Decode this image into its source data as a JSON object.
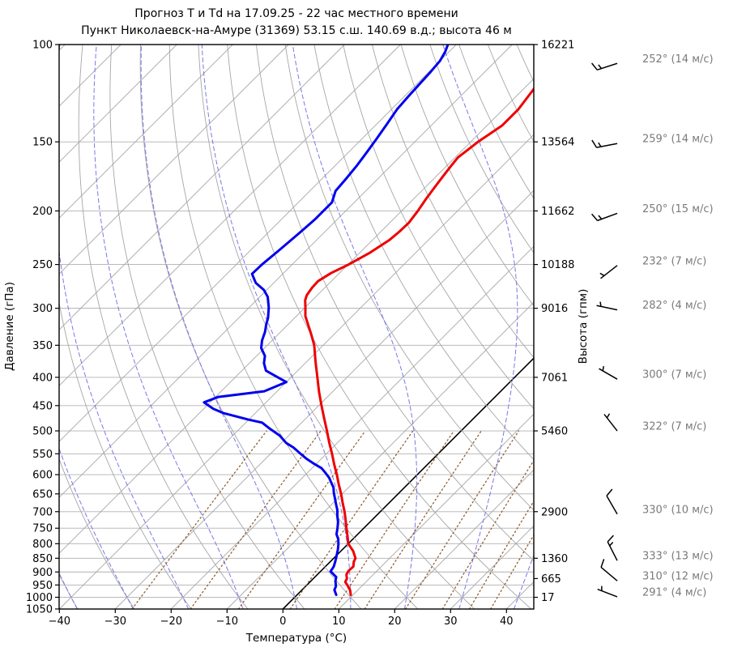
{
  "title": {
    "line1": "Прогноз Т и Td на 17.09.25 - 22 час местного времени",
    "line2": "Пункт Николаевск-на-Амуре (31369) 53.15 с.ш. 140.69 в.д.; высота 46 м"
  },
  "axes": {
    "pressure": {
      "label": "Давление (гПа)",
      "ticks": [
        100,
        150,
        200,
        250,
        300,
        350,
        400,
        450,
        500,
        550,
        600,
        650,
        700,
        750,
        800,
        850,
        900,
        950,
        1000,
        1050
      ],
      "min": 100,
      "max": 1050,
      "scale": "log"
    },
    "temperature": {
      "label": "Температура (°C)",
      "ticks": [
        -40,
        -30,
        -20,
        -10,
        0,
        10,
        20,
        30,
        40
      ],
      "min": -40,
      "max": 45
    },
    "height": {
      "label": "Высота (гпм)",
      "levels": [
        {
          "p": 100,
          "h": "16221"
        },
        {
          "p": 150,
          "h": "13564"
        },
        {
          "p": 200,
          "h": "11662"
        },
        {
          "p": 250,
          "h": "10188"
        },
        {
          "p": 300,
          "h": "9016"
        },
        {
          "p": 400,
          "h": "7061"
        },
        {
          "p": 500,
          "h": "5460"
        },
        {
          "p": 700,
          "h": "2900"
        },
        {
          "p": 850,
          "h": "1360"
        },
        {
          "p": 925,
          "h": "665"
        },
        {
          "p": 1000,
          "h": "17"
        }
      ]
    }
  },
  "winds": [
    {
      "p": 106,
      "dir": 252,
      "speed": 14,
      "label": "252° (14 м/с)"
    },
    {
      "p": 148,
      "dir": 259,
      "speed": 14,
      "label": "259° (14 м/с)"
    },
    {
      "p": 198,
      "dir": 250,
      "speed": 15,
      "label": "250° (15 м/с)"
    },
    {
      "p": 246,
      "dir": 232,
      "speed": 7,
      "label": "232° (7 м/с)"
    },
    {
      "p": 296,
      "dir": 282,
      "speed": 4,
      "label": "282° (4 м/с)"
    },
    {
      "p": 395,
      "dir": 300,
      "speed": 7,
      "label": "300° (7 м/с)"
    },
    {
      "p": 490,
      "dir": 322,
      "speed": 7,
      "label": "322° (7 м/с)"
    },
    {
      "p": 693,
      "dir": 330,
      "speed": 10,
      "label": "330° (10 м/с)"
    },
    {
      "p": 841,
      "dir": 333,
      "speed": 13,
      "label": "333° (13 м/с)"
    },
    {
      "p": 915,
      "dir": 310,
      "speed": 12,
      "label": "310° (12 м/с)"
    },
    {
      "p": 978,
      "dir": 291,
      "speed": 4,
      "label": "291° (4 м/с)"
    }
  ],
  "chart_data": {
    "type": "line",
    "subtype": "skew-t-log-p",
    "x_axis": {
      "label": "Температура (°C)",
      "range": [
        -40,
        45
      ],
      "tick_step": 10
    },
    "y_axis": {
      "label": "Давление (гПа)",
      "range": [
        100,
        1050
      ],
      "scale": "log"
    },
    "legend": "none",
    "series": [
      {
        "name": "temperature_T",
        "color": "#ee0000",
        "points_p_t": [
          [
            990,
            9.6
          ],
          [
            970,
            8.6
          ],
          [
            950,
            7.2
          ],
          [
            938,
            6.3
          ],
          [
            925,
            6.0
          ],
          [
            910,
            5.2
          ],
          [
            895,
            4.9
          ],
          [
            880,
            5.0
          ],
          [
            862,
            4.2
          ],
          [
            850,
            3.9
          ],
          [
            825,
            2.2
          ],
          [
            800,
            0.0
          ],
          [
            775,
            -1.5
          ],
          [
            750,
            -3.1
          ],
          [
            725,
            -4.7
          ],
          [
            700,
            -6.4
          ],
          [
            675,
            -8.3
          ],
          [
            650,
            -10.2
          ],
          [
            625,
            -12.3
          ],
          [
            600,
            -14.4
          ],
          [
            575,
            -16.7
          ],
          [
            550,
            -19.0
          ],
          [
            525,
            -21.5
          ],
          [
            500,
            -24.0
          ],
          [
            475,
            -26.7
          ],
          [
            450,
            -29.5
          ],
          [
            425,
            -32.4
          ],
          [
            400,
            -35.3
          ],
          [
            375,
            -38.4
          ],
          [
            350,
            -41.6
          ],
          [
            335,
            -44.0
          ],
          [
            320,
            -46.6
          ],
          [
            310,
            -48.4
          ],
          [
            300,
            -49.8
          ],
          [
            290,
            -51.3
          ],
          [
            284,
            -51.9
          ],
          [
            275,
            -52.3
          ],
          [
            268,
            -52.4
          ],
          [
            259,
            -51.5
          ],
          [
            250,
            -49.9
          ],
          [
            238,
            -48.2
          ],
          [
            226,
            -47.0
          ],
          [
            218,
            -46.7
          ],
          [
            210,
            -46.6
          ],
          [
            200,
            -47.1
          ],
          [
            190,
            -47.8
          ],
          [
            180,
            -48.4
          ],
          [
            173,
            -48.8
          ],
          [
            166,
            -49.2
          ],
          [
            160,
            -49.5
          ],
          [
            155,
            -49.1
          ],
          [
            150,
            -48.7
          ],
          [
            145,
            -48.0
          ],
          [
            140,
            -47.3
          ],
          [
            135,
            -47.3
          ],
          [
            131,
            -47.3
          ],
          [
            126,
            -47.7
          ],
          [
            120,
            -48.2
          ]
        ]
      },
      {
        "name": "dewpoint_Td",
        "color": "#0000ee",
        "points_p_t": [
          [
            990,
            7.0
          ],
          [
            970,
            5.8
          ],
          [
            955,
            5.4
          ],
          [
            935,
            4.4
          ],
          [
            919,
            3.8
          ],
          [
            898,
            1.8
          ],
          [
            880,
            1.5
          ],
          [
            860,
            0.8
          ],
          [
            842,
            0.1
          ],
          [
            820,
            -0.8
          ],
          [
            803,
            -1.6
          ],
          [
            785,
            -2.6
          ],
          [
            769,
            -3.8
          ],
          [
            750,
            -4.7
          ],
          [
            731,
            -5.7
          ],
          [
            713,
            -6.9
          ],
          [
            695,
            -8.0
          ],
          [
            678,
            -9.3
          ],
          [
            661,
            -10.6
          ],
          [
            647,
            -11.7
          ],
          [
            633,
            -12.7
          ],
          [
            620,
            -14.0
          ],
          [
            608,
            -15.2
          ],
          [
            596,
            -16.7
          ],
          [
            584,
            -18.3
          ],
          [
            572,
            -20.7
          ],
          [
            562,
            -22.6
          ],
          [
            549,
            -24.8
          ],
          [
            536,
            -27.0
          ],
          [
            526,
            -29.1
          ],
          [
            510,
            -31.6
          ],
          [
            496,
            -34.5
          ],
          [
            483,
            -37.1
          ],
          [
            477,
            -40.1
          ],
          [
            464,
            -45.8
          ],
          [
            456,
            -48.3
          ],
          [
            444,
            -51.1
          ],
          [
            434,
            -49.5
          ],
          [
            424,
            -42.3
          ],
          [
            408,
            -40.0
          ],
          [
            389,
            -45.7
          ],
          [
            377,
            -47.4
          ],
          [
            366,
            -48.5
          ],
          [
            354,
            -50.6
          ],
          [
            343,
            -51.8
          ],
          [
            331,
            -52.8
          ],
          [
            322,
            -53.8
          ],
          [
            312,
            -54.8
          ],
          [
            299,
            -56.5
          ],
          [
            286,
            -58.6
          ],
          [
            278,
            -60.5
          ],
          [
            270,
            -63.2
          ],
          [
            260,
            -65.5
          ],
          [
            250,
            -65.4
          ],
          [
            236,
            -64.9
          ],
          [
            221,
            -64.4
          ],
          [
            207,
            -64.0
          ],
          [
            193,
            -64.0
          ],
          [
            184,
            -65.4
          ],
          [
            175,
            -65.7
          ],
          [
            166,
            -66.1
          ],
          [
            157,
            -66.7
          ],
          [
            148,
            -67.4
          ],
          [
            139,
            -68.2
          ],
          [
            131,
            -69.0
          ],
          [
            124,
            -69.3
          ],
          [
            118,
            -69.5
          ],
          [
            112,
            -69.7
          ],
          [
            107,
            -70.0
          ],
          [
            103,
            -70.7
          ],
          [
            100,
            -71.5
          ]
        ]
      }
    ],
    "background": {
      "isotherms_c": [
        -140,
        -130,
        -120,
        -110,
        -100,
        -90,
        -80,
        -70,
        -60,
        -50,
        -40,
        -30,
        -20,
        -10,
        0,
        10,
        20,
        30,
        40
      ],
      "zero_isotherm_c": 0,
      "dry_adiabats_c": [
        -40,
        -30,
        -20,
        -10,
        0,
        10,
        20,
        30,
        40,
        50,
        60,
        70,
        80,
        90,
        100,
        110,
        120,
        130,
        140,
        150,
        160,
        170
      ],
      "moist_adiabats_c": [
        -40,
        -30,
        -20,
        -10,
        0,
        10,
        20,
        30,
        40
      ],
      "mixing_ratios_g_kg": [
        0.4,
        1,
        2,
        4,
        7,
        10,
        16,
        24,
        32,
        40
      ],
      "mixing_ratio_p_range": [
        1050,
        500
      ]
    }
  },
  "colors": {
    "grid": "#a6a6a6",
    "pressure_grid": "#b0b0b0",
    "moist_adiabat": "#7878e8",
    "mixing_ratio": "#8f5f33",
    "zero_isotherm": "#000000",
    "temperature": "#ee0000",
    "dewpoint": "#0000ee",
    "frame": "#000000",
    "tick_text": "#000000",
    "wind_text": "#7a7a7a",
    "barb": "#000000"
  }
}
